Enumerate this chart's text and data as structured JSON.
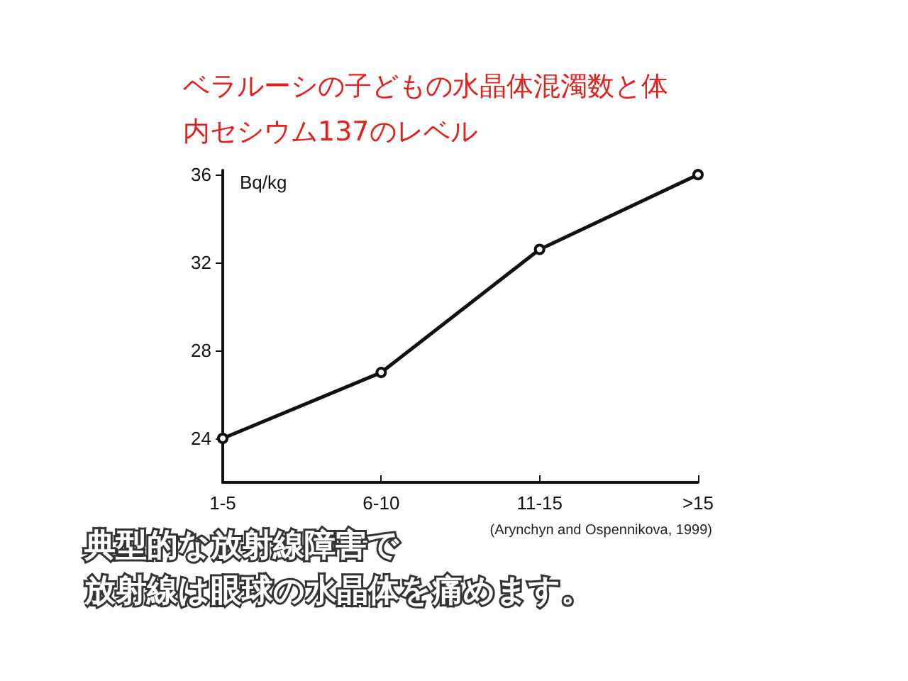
{
  "chart_data": {
    "type": "line",
    "title": "ベラルーシの子どもの水晶体混濁数と体内セシウム137のレベル",
    "ylabel": "Bq/kg",
    "categories": [
      "1-5",
      "6-10",
      "11-15",
      ">15"
    ],
    "series": [
      {
        "color": "#111111",
        "values": [
          24,
          27,
          32.6,
          36
        ]
      }
    ],
    "ylim": [
      22,
      36.2
    ],
    "yticks": [
      24,
      28,
      32,
      36
    ],
    "grid": false,
    "marker": "circle",
    "line_style": "solid",
    "annotations": [
      "(Arynchyn and Ospennikova, 1999)",
      "典型的な放射線障害で",
      "放射線は眼球の水晶体を痛めます。"
    ]
  }
}
